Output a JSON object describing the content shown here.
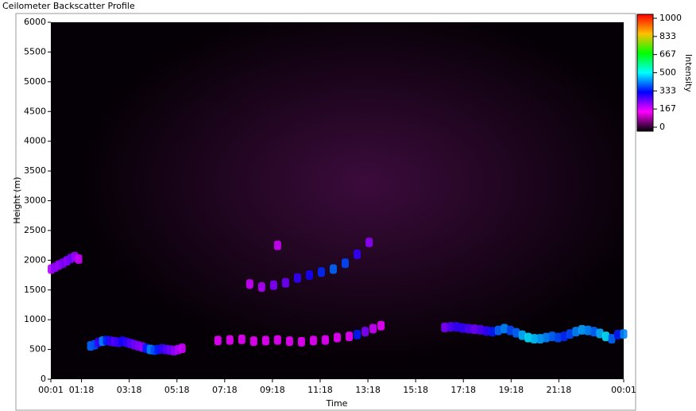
{
  "chart_data": {
    "type": "heatmap",
    "title": "Ceilometer Backscatter Profile",
    "x_label": "Time",
    "y_label": "Height (m)",
    "xlim": [
      1,
      1441
    ],
    "xticks": [
      {
        "value": 1,
        "label": "00:01"
      },
      {
        "value": 78,
        "label": "01:18"
      },
      {
        "value": 198,
        "label": "03:18"
      },
      {
        "value": 318,
        "label": "05:18"
      },
      {
        "value": 438,
        "label": "07:18"
      },
      {
        "value": 558,
        "label": "09:18"
      },
      {
        "value": 678,
        "label": "11:18"
      },
      {
        "value": 798,
        "label": "13:18"
      },
      {
        "value": 918,
        "label": "15:18"
      },
      {
        "value": 1038,
        "label": "17:18"
      },
      {
        "value": 1158,
        "label": "19:18"
      },
      {
        "value": 1278,
        "label": "21:18"
      },
      {
        "value": 1441,
        "label": "00:01"
      }
    ],
    "ylim": [
      0,
      6000
    ],
    "yticks": [
      0,
      500,
      1000,
      1500,
      2000,
      2500,
      3000,
      3500,
      4000,
      4500,
      5000,
      5500,
      6000
    ],
    "colorbar_label": "Intensity",
    "clim": [
      0,
      1000
    ],
    "cticks": [
      0,
      167,
      333,
      500,
      667,
      833,
      1000
    ],
    "colors": [
      "#000000",
      "#ff00ff",
      "#0000ff",
      "#00ffff",
      "#00ff00",
      "#ffc000",
      "#ff0000"
    ],
    "layers": [
      {
        "x": [
          1,
          10,
          20,
          30,
          40,
          50,
          60,
          70
        ],
        "y": [
          1850,
          1880,
          1920,
          1950,
          1990,
          2030,
          2060,
          2020
        ],
        "values": [
          220,
          240,
          230,
          250,
          240,
          260,
          230,
          200
        ]
      },
      {
        "x": [
          100,
          110,
          120,
          130,
          140,
          150,
          160,
          170,
          180,
          190,
          200,
          210,
          220,
          230,
          240,
          250,
          260,
          270,
          280,
          290,
          300,
          310,
          320,
          330
        ],
        "y": [
          560,
          580,
          620,
          640,
          650,
          640,
          630,
          620,
          640,
          620,
          600,
          580,
          560,
          540,
          520,
          500,
          490,
          500,
          510,
          500,
          490,
          480,
          500,
          520
        ],
        "values": [
          400,
          380,
          300,
          420,
          350,
          300,
          280,
          300,
          320,
          300,
          280,
          260,
          250,
          240,
          350,
          420,
          380,
          350,
          300,
          280,
          260,
          240,
          220,
          200
        ]
      },
      {
        "x": [
          420,
          450,
          480,
          510,
          540,
          570,
          600,
          630,
          660,
          690,
          720,
          750
        ],
        "y": [
          650,
          660,
          670,
          640,
          650,
          660,
          640,
          630,
          650,
          660,
          700,
          720
        ],
        "values": [
          180,
          180,
          180,
          180,
          180,
          180,
          180,
          180,
          180,
          180,
          180,
          180
        ]
      },
      {
        "x": [
          500,
          530,
          560,
          590,
          620,
          650,
          680,
          710,
          740,
          770,
          800
        ],
        "y": [
          1600,
          1550,
          1580,
          1620,
          1700,
          1750,
          1800,
          1850,
          1950,
          2100,
          2300
        ],
        "values": [
          200,
          220,
          250,
          260,
          300,
          320,
          360,
          400,
          380,
          300,
          240
        ]
      },
      {
        "x": [
          570
        ],
        "y": [
          2250
        ],
        "values": [
          200
        ]
      },
      {
        "x": [
          770,
          790,
          810,
          830
        ],
        "y": [
          750,
          800,
          850,
          900
        ],
        "values": [
          350,
          250,
          200,
          180
        ]
      },
      {
        "x": [
          990,
          1005,
          1020,
          1035,
          1050,
          1065,
          1080,
          1095,
          1110,
          1125,
          1140,
          1155,
          1170,
          1185,
          1200,
          1215,
          1230,
          1245,
          1260,
          1275,
          1290,
          1305,
          1320,
          1335,
          1350,
          1365,
          1380,
          1395,
          1410,
          1425,
          1440
        ],
        "y": [
          870,
          880,
          880,
          860,
          850,
          840,
          830,
          810,
          800,
          820,
          850,
          820,
          780,
          740,
          700,
          680,
          680,
          700,
          720,
          700,
          720,
          760,
          800,
          830,
          820,
          800,
          770,
          720,
          680,
          750,
          760
        ],
        "values": [
          250,
          280,
          300,
          300,
          280,
          260,
          280,
          300,
          350,
          400,
          420,
          380,
          400,
          450,
          480,
          460,
          440,
          420,
          400,
          380,
          360,
          380,
          420,
          440,
          420,
          400,
          450,
          480,
          400,
          350,
          420
        ]
      }
    ]
  }
}
